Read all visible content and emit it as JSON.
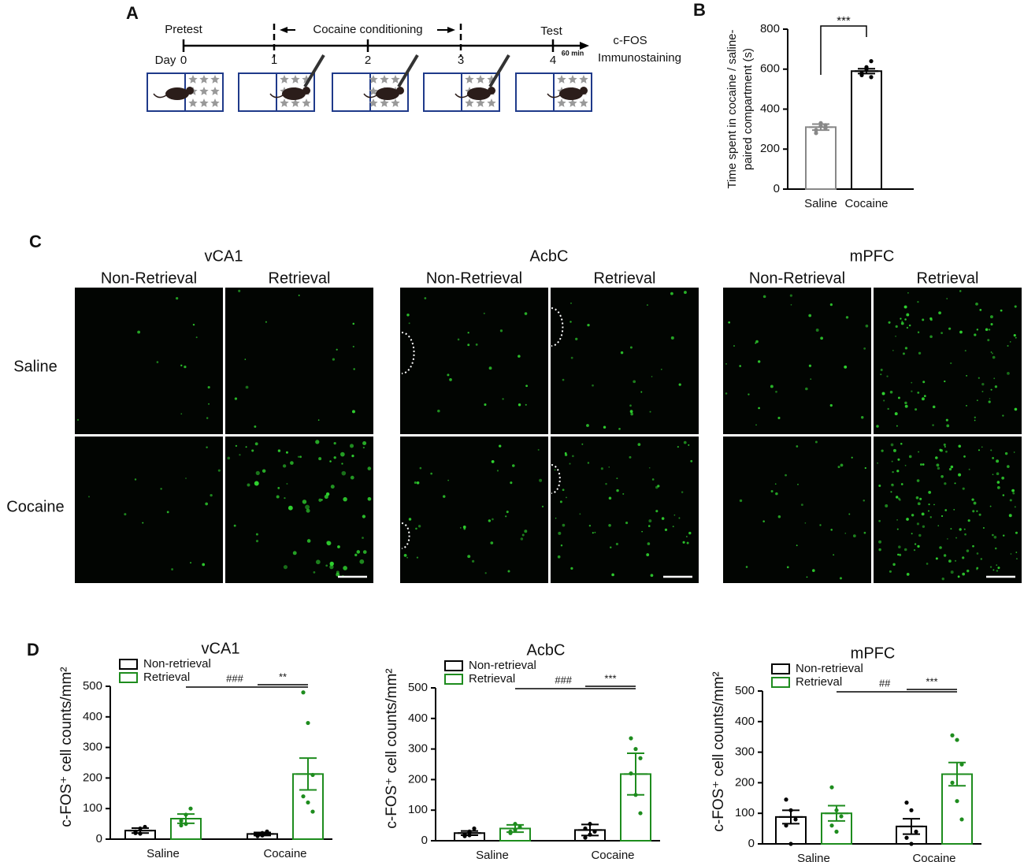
{
  "panel_a": {
    "label": "A",
    "pretest": "Pretest",
    "conditioning": "Cocaine conditioning",
    "test": "Test",
    "day": "Day",
    "days": [
      "0",
      "1",
      "2",
      "3",
      "4"
    ],
    "interval": "60 min",
    "readout": [
      "c-FOS",
      "Immunostaining"
    ]
  },
  "panel_c": {
    "label": "C",
    "regions": [
      "vCA1",
      "AcbC",
      "mPFC"
    ],
    "conditions": [
      "Non-Retrieval",
      "Retrieval"
    ],
    "groups": [
      "Saline",
      "Cocaine"
    ]
  },
  "panel_d_label": "D",
  "chart_data": [
    {
      "type": "bar",
      "panel": "B",
      "ylabel": [
        "Time spent in cocaine / saline-",
        "paired compartment (s)"
      ],
      "categories": [
        "Saline",
        "Cocaine"
      ],
      "values": [
        310,
        590
      ],
      "errors": [
        15,
        12
      ],
      "colors": [
        "#888888",
        "#000000"
      ],
      "points": [
        [
          295,
          330,
          320,
          280,
          315,
          305
        ],
        [
          570,
          600,
          640,
          580,
          610,
          560
        ]
      ],
      "ylim": [
        0,
        800
      ],
      "yticks": [
        0,
        200,
        400,
        600,
        800
      ],
      "annotations": [
        {
          "text": "***"
        }
      ]
    },
    {
      "type": "grouped_bar",
      "title": "vCA1",
      "ylabel": "c-FOS⁺ cell counts/mm²",
      "categories": [
        "Saline",
        "Cocaine"
      ],
      "series": [
        {
          "name": "Non-retrieval",
          "color": "#000000",
          "values": [
            28,
            17
          ],
          "errors": [
            8,
            5
          ],
          "points": [
            [
              20,
              35,
              40,
              25,
              18
            ],
            [
              10,
              20,
              25,
              15,
              12
            ]
          ]
        },
        {
          "name": "Retrieval",
          "color": "#1e8c1e",
          "values": [
            67,
            213
          ],
          "errors": [
            15,
            52
          ],
          "points": [
            [
              45,
              80,
              100,
              60,
              50
            ],
            [
              480,
              380,
              210,
              140,
              120,
              90
            ]
          ]
        }
      ],
      "ylim": [
        0,
        500
      ],
      "yticks": [
        0,
        100,
        200,
        300,
        400,
        500
      ],
      "annotations": [
        {
          "text": "###"
        },
        {
          "text": "**"
        }
      ]
    },
    {
      "type": "grouped_bar",
      "title": "AcbC",
      "ylabel": "c-FOS⁺ cell counts/mm²",
      "categories": [
        "Saline",
        "Cocaine"
      ],
      "series": [
        {
          "name": "Non-retrieval",
          "color": "#000000",
          "values": [
            25,
            35
          ],
          "errors": [
            7,
            18
          ],
          "points": [
            [
              15,
              30,
              40,
              20,
              18
            ],
            [
              10,
              55,
              30,
              40,
              20
            ]
          ]
        },
        {
          "name": "Retrieval",
          "color": "#1e8c1e",
          "values": [
            40,
            218
          ],
          "errors": [
            12,
            68
          ],
          "points": [
            [
              25,
              55,
              45,
              30,
              35
            ],
            [
              335,
              300,
              270,
              220,
              150,
              90
            ]
          ]
        }
      ],
      "ylim": [
        0,
        500
      ],
      "yticks": [
        0,
        100,
        200,
        300,
        400,
        500
      ],
      "annotations": [
        {
          "text": "###"
        },
        {
          "text": "***"
        }
      ]
    },
    {
      "type": "grouped_bar",
      "title": "mPFC",
      "ylabel": "c-FOS⁺ cell counts/mm²",
      "categories": [
        "Saline",
        "Cocaine"
      ],
      "series": [
        {
          "name": "Non-retrieval",
          "color": "#000000",
          "values": [
            88,
            57
          ],
          "errors": [
            22,
            25
          ],
          "points": [
            [
              145,
              110,
              80,
              60,
              0
            ],
            [
              135,
              110,
              40,
              20,
              0
            ]
          ]
        },
        {
          "name": "Retrieval",
          "color": "#1e8c1e",
          "values": [
            100,
            228
          ],
          "errors": [
            25,
            38
          ],
          "points": [
            [
              185,
              110,
              90,
              60,
              40
            ],
            [
              355,
              340,
              260,
              200,
              140,
              80
            ]
          ]
        }
      ],
      "ylim": [
        0,
        500
      ],
      "yticks": [
        0,
        100,
        200,
        300,
        400,
        500
      ],
      "annotations": [
        {
          "text": "##"
        },
        {
          "text": "***"
        }
      ]
    }
  ]
}
